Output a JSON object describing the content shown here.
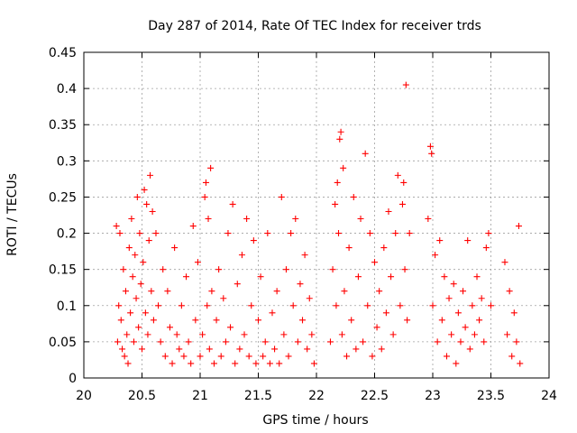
{
  "chart_data": {
    "type": "scatter",
    "title": "Day 287 of 2014, Rate Of TEC Index for receiver trds",
    "xlabel": "GPS time / hours",
    "ylabel": "ROTI / TECUs",
    "xlim": [
      20,
      24
    ],
    "ylim": [
      0,
      0.45
    ],
    "grid": true,
    "marker": "plus",
    "color": "#ff0000",
    "xticks": [
      20,
      20.5,
      21,
      21.5,
      22,
      22.5,
      23,
      23.5,
      24
    ],
    "xtick_labels": [
      "20",
      "20.5",
      "21",
      "21.5",
      "22",
      "22.5",
      "23",
      "23.5",
      "24"
    ],
    "yticks": [
      0,
      0.05,
      0.1,
      0.15,
      0.2,
      0.25,
      0.3,
      0.35,
      0.4,
      0.45
    ],
    "ytick_labels": [
      "0",
      "0.05",
      "0.1",
      "0.15",
      "0.2",
      "0.25",
      "0.3",
      "0.35",
      "0.4",
      "0.45"
    ],
    "series": [
      {
        "name": "ROTI",
        "points": [
          [
            20.28,
            0.21
          ],
          [
            20.29,
            0.05
          ],
          [
            20.3,
            0.1
          ],
          [
            20.31,
            0.2
          ],
          [
            20.32,
            0.08
          ],
          [
            20.33,
            0.04
          ],
          [
            20.34,
            0.15
          ],
          [
            20.35,
            0.03
          ],
          [
            20.36,
            0.12
          ],
          [
            20.37,
            0.06
          ],
          [
            20.38,
            0.02
          ],
          [
            20.39,
            0.18
          ],
          [
            20.4,
            0.09
          ],
          [
            20.41,
            0.22
          ],
          [
            20.42,
            0.14
          ],
          [
            20.43,
            0.05
          ],
          [
            20.44,
            0.17
          ],
          [
            20.45,
            0.11
          ],
          [
            20.46,
            0.25
          ],
          [
            20.47,
            0.07
          ],
          [
            20.48,
            0.2
          ],
          [
            20.49,
            0.13
          ],
          [
            20.5,
            0.04
          ],
          [
            20.51,
            0.16
          ],
          [
            20.52,
            0.26
          ],
          [
            20.53,
            0.09
          ],
          [
            20.54,
            0.24
          ],
          [
            20.55,
            0.06
          ],
          [
            20.56,
            0.19
          ],
          [
            20.57,
            0.28
          ],
          [
            20.58,
            0.12
          ],
          [
            20.59,
            0.23
          ],
          [
            20.6,
            0.08
          ],
          [
            20.62,
            0.2
          ],
          [
            20.64,
            0.1
          ],
          [
            20.66,
            0.05
          ],
          [
            20.68,
            0.15
          ],
          [
            20.7,
            0.03
          ],
          [
            20.72,
            0.12
          ],
          [
            20.74,
            0.07
          ],
          [
            20.76,
            0.02
          ],
          [
            20.78,
            0.18
          ],
          [
            20.8,
            0.06
          ],
          [
            20.82,
            0.04
          ],
          [
            20.84,
            0.1
          ],
          [
            20.86,
            0.03
          ],
          [
            20.88,
            0.14
          ],
          [
            20.9,
            0.05
          ],
          [
            20.92,
            0.02
          ],
          [
            20.94,
            0.21
          ],
          [
            20.96,
            0.08
          ],
          [
            20.98,
            0.16
          ],
          [
            21.0,
            0.03
          ],
          [
            21.02,
            0.06
          ],
          [
            21.04,
            0.25
          ],
          [
            21.05,
            0.27
          ],
          [
            21.06,
            0.1
          ],
          [
            21.07,
            0.22
          ],
          [
            21.08,
            0.04
          ],
          [
            21.09,
            0.29
          ],
          [
            21.1,
            0.12
          ],
          [
            21.12,
            0.02
          ],
          [
            21.14,
            0.08
          ],
          [
            21.16,
            0.15
          ],
          [
            21.18,
            0.03
          ],
          [
            21.2,
            0.11
          ],
          [
            21.22,
            0.05
          ],
          [
            21.24,
            0.2
          ],
          [
            21.26,
            0.07
          ],
          [
            21.28,
            0.24
          ],
          [
            21.3,
            0.02
          ],
          [
            21.32,
            0.13
          ],
          [
            21.34,
            0.04
          ],
          [
            21.36,
            0.17
          ],
          [
            21.38,
            0.06
          ],
          [
            21.4,
            0.22
          ],
          [
            21.42,
            0.03
          ],
          [
            21.44,
            0.1
          ],
          [
            21.46,
            0.19
          ],
          [
            21.48,
            0.02
          ],
          [
            21.5,
            0.08
          ],
          [
            21.52,
            0.14
          ],
          [
            21.54,
            0.03
          ],
          [
            21.56,
            0.05
          ],
          [
            21.58,
            0.2
          ],
          [
            21.6,
            0.02
          ],
          [
            21.62,
            0.09
          ],
          [
            21.64,
            0.04
          ],
          [
            21.66,
            0.12
          ],
          [
            21.68,
            0.02
          ],
          [
            21.7,
            0.25
          ],
          [
            21.72,
            0.06
          ],
          [
            21.74,
            0.15
          ],
          [
            21.76,
            0.03
          ],
          [
            21.78,
            0.2
          ],
          [
            21.8,
            0.1
          ],
          [
            21.82,
            0.22
          ],
          [
            21.84,
            0.05
          ],
          [
            21.86,
            0.13
          ],
          [
            21.88,
            0.08
          ],
          [
            21.9,
            0.17
          ],
          [
            21.92,
            0.04
          ],
          [
            21.94,
            0.11
          ],
          [
            21.96,
            0.06
          ],
          [
            21.98,
            0.02
          ],
          [
            22.12,
            0.05
          ],
          [
            22.14,
            0.15
          ],
          [
            22.16,
            0.24
          ],
          [
            22.17,
            0.1
          ],
          [
            22.18,
            0.27
          ],
          [
            22.19,
            0.2
          ],
          [
            22.2,
            0.33
          ],
          [
            22.21,
            0.34
          ],
          [
            22.22,
            0.06
          ],
          [
            22.23,
            0.29
          ],
          [
            22.24,
            0.12
          ],
          [
            22.26,
            0.03
          ],
          [
            22.28,
            0.18
          ],
          [
            22.3,
            0.08
          ],
          [
            22.32,
            0.25
          ],
          [
            22.34,
            0.04
          ],
          [
            22.36,
            0.14
          ],
          [
            22.38,
            0.22
          ],
          [
            22.4,
            0.05
          ],
          [
            22.42,
            0.31
          ],
          [
            22.44,
            0.1
          ],
          [
            22.46,
            0.2
          ],
          [
            22.48,
            0.03
          ],
          [
            22.5,
            0.16
          ],
          [
            22.52,
            0.07
          ],
          [
            22.54,
            0.12
          ],
          [
            22.56,
            0.04
          ],
          [
            22.58,
            0.18
          ],
          [
            22.6,
            0.09
          ],
          [
            22.62,
            0.23
          ],
          [
            22.64,
            0.14
          ],
          [
            22.66,
            0.06
          ],
          [
            22.68,
            0.2
          ],
          [
            22.7,
            0.28
          ],
          [
            22.72,
            0.1
          ],
          [
            22.74,
            0.24
          ],
          [
            22.75,
            0.27
          ],
          [
            22.76,
            0.15
          ],
          [
            22.77,
            0.405
          ],
          [
            22.78,
            0.08
          ],
          [
            22.8,
            0.2
          ],
          [
            22.96,
            0.22
          ],
          [
            22.98,
            0.32
          ],
          [
            22.99,
            0.31
          ],
          [
            23.0,
            0.1
          ],
          [
            23.02,
            0.17
          ],
          [
            23.04,
            0.05
          ],
          [
            23.06,
            0.19
          ],
          [
            23.08,
            0.08
          ],
          [
            23.1,
            0.14
          ],
          [
            23.12,
            0.03
          ],
          [
            23.14,
            0.11
          ],
          [
            23.16,
            0.06
          ],
          [
            23.18,
            0.13
          ],
          [
            23.2,
            0.02
          ],
          [
            23.22,
            0.09
          ],
          [
            23.24,
            0.05
          ],
          [
            23.26,
            0.12
          ],
          [
            23.28,
            0.07
          ],
          [
            23.3,
            0.19
          ],
          [
            23.32,
            0.04
          ],
          [
            23.34,
            0.1
          ],
          [
            23.36,
            0.06
          ],
          [
            23.38,
            0.14
          ],
          [
            23.4,
            0.08
          ],
          [
            23.42,
            0.11
          ],
          [
            23.44,
            0.05
          ],
          [
            23.46,
            0.18
          ],
          [
            23.48,
            0.2
          ],
          [
            23.5,
            0.1
          ],
          [
            23.62,
            0.16
          ],
          [
            23.64,
            0.06
          ],
          [
            23.66,
            0.12
          ],
          [
            23.68,
            0.03
          ],
          [
            23.7,
            0.09
          ],
          [
            23.72,
            0.05
          ],
          [
            23.74,
            0.21
          ],
          [
            23.75,
            0.02
          ]
        ]
      }
    ]
  }
}
